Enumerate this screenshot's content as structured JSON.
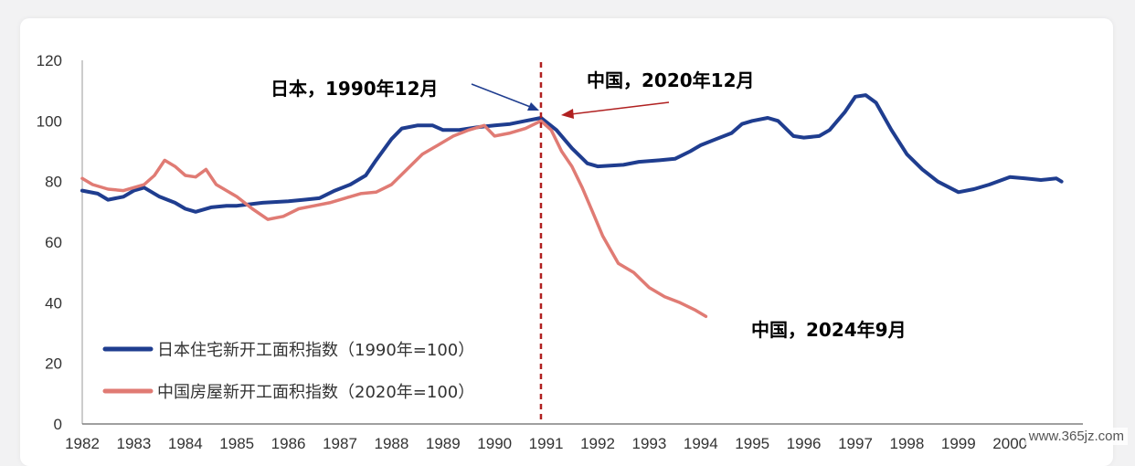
{
  "chart_data": {
    "type": "line",
    "title": "",
    "xlabel": "",
    "ylabel": "",
    "ylim": [
      0,
      120
    ],
    "yticks": [
      "0",
      "20",
      "40",
      "60",
      "80",
      "100",
      "120"
    ],
    "xlim": [
      1982,
      2001
    ],
    "xticks": [
      "1982",
      "1983",
      "1984",
      "1985",
      "1986",
      "1987",
      "1988",
      "1989",
      "1990",
      "1991",
      "1992",
      "1993",
      "1994",
      "1995",
      "1996",
      "1997",
      "1998",
      "1999",
      "2000"
    ],
    "grid": false,
    "legend_position": "bottom-left",
    "series": [
      {
        "name": "日本住宅新开工面积指数（1990年=100）",
        "color": "#1f3d8f",
        "points": [
          [
            1982.0,
            77
          ],
          [
            1982.3,
            76
          ],
          [
            1982.5,
            74
          ],
          [
            1982.8,
            75
          ],
          [
            1983.0,
            77
          ],
          [
            1983.2,
            78
          ],
          [
            1983.5,
            75
          ],
          [
            1983.8,
            73
          ],
          [
            1984.0,
            71
          ],
          [
            1984.2,
            70
          ],
          [
            1984.5,
            71.5
          ],
          [
            1984.8,
            72
          ],
          [
            1985.0,
            72
          ],
          [
            1985.5,
            73
          ],
          [
            1986.0,
            73.5
          ],
          [
            1986.3,
            74
          ],
          [
            1986.6,
            74.5
          ],
          [
            1986.9,
            77
          ],
          [
            1987.2,
            79
          ],
          [
            1987.5,
            82
          ],
          [
            1987.7,
            87
          ],
          [
            1988.0,
            94
          ],
          [
            1988.2,
            97.5
          ],
          [
            1988.5,
            98.5
          ],
          [
            1988.8,
            98.5
          ],
          [
            1989.0,
            97
          ],
          [
            1989.3,
            97
          ],
          [
            1989.7,
            98
          ],
          [
            1990.0,
            98.5
          ],
          [
            1990.3,
            99
          ],
          [
            1990.6,
            100
          ],
          [
            1990.9,
            101
          ],
          [
            1991.2,
            97
          ],
          [
            1991.5,
            91
          ],
          [
            1991.8,
            86
          ],
          [
            1992.0,
            85
          ],
          [
            1992.5,
            85.5
          ],
          [
            1992.8,
            86.5
          ],
          [
            1993.2,
            87
          ],
          [
            1993.5,
            87.5
          ],
          [
            1993.8,
            90
          ],
          [
            1994.0,
            92
          ],
          [
            1994.3,
            94
          ],
          [
            1994.6,
            96
          ],
          [
            1994.8,
            99
          ],
          [
            1995.0,
            100
          ],
          [
            1995.3,
            101
          ],
          [
            1995.5,
            100
          ],
          [
            1995.8,
            95
          ],
          [
            1996.0,
            94.5
          ],
          [
            1996.3,
            95
          ],
          [
            1996.5,
            97
          ],
          [
            1996.8,
            103
          ],
          [
            1997.0,
            108
          ],
          [
            1997.2,
            108.5
          ],
          [
            1997.4,
            106
          ],
          [
            1997.7,
            97
          ],
          [
            1998.0,
            89
          ],
          [
            1998.3,
            84
          ],
          [
            1998.6,
            80
          ],
          [
            1999.0,
            76.5
          ],
          [
            1999.3,
            77.5
          ],
          [
            1999.6,
            79
          ],
          [
            2000.0,
            81.5
          ],
          [
            2000.3,
            81
          ],
          [
            2000.6,
            80.5
          ],
          [
            2000.9,
            81
          ],
          [
            2001.0,
            80
          ]
        ]
      },
      {
        "name": "中国房屋新开工面积指数（2020年=100）",
        "color": "#e07b74",
        "points": [
          [
            1982.0,
            81
          ],
          [
            1982.2,
            79
          ],
          [
            1982.5,
            77.5
          ],
          [
            1982.8,
            77
          ],
          [
            1983.0,
            78
          ],
          [
            1983.2,
            79
          ],
          [
            1983.4,
            82
          ],
          [
            1983.6,
            87
          ],
          [
            1983.8,
            85
          ],
          [
            1984.0,
            82
          ],
          [
            1984.2,
            81.5
          ],
          [
            1984.4,
            84
          ],
          [
            1984.6,
            79
          ],
          [
            1984.8,
            77
          ],
          [
            1985.0,
            75
          ],
          [
            1985.3,
            71
          ],
          [
            1985.6,
            67.5
          ],
          [
            1985.9,
            68.5
          ],
          [
            1986.2,
            71
          ],
          [
            1986.5,
            72
          ],
          [
            1986.8,
            73
          ],
          [
            1987.1,
            74.5
          ],
          [
            1987.4,
            76
          ],
          [
            1987.7,
            76.5
          ],
          [
            1988.0,
            79
          ],
          [
            1988.3,
            84
          ],
          [
            1988.6,
            89
          ],
          [
            1988.9,
            92
          ],
          [
            1989.2,
            95
          ],
          [
            1989.5,
            97
          ],
          [
            1989.8,
            98.5
          ],
          [
            1990.0,
            95
          ],
          [
            1990.3,
            96
          ],
          [
            1990.6,
            97.5
          ],
          [
            1990.9,
            100
          ],
          [
            1991.1,
            97
          ],
          [
            1991.3,
            90
          ],
          [
            1991.5,
            85
          ],
          [
            1991.7,
            78
          ],
          [
            1991.9,
            70
          ],
          [
            1992.1,
            62
          ],
          [
            1992.4,
            53
          ],
          [
            1992.7,
            50
          ],
          [
            1993.0,
            45
          ],
          [
            1993.3,
            42
          ],
          [
            1993.6,
            40
          ],
          [
            1993.9,
            37.5
          ],
          [
            1994.1,
            35.5
          ]
        ]
      }
    ],
    "reference_line": {
      "x": 1990.9,
      "color": "#b02020",
      "style": "dashed"
    },
    "annotations": [
      {
        "text": "日本，1990年12月",
        "color": "#1f3d8f"
      },
      {
        "text": "中国，2020年12月",
        "color": "#b02020"
      },
      {
        "text": "中国，2024年9月",
        "color": "#b02020"
      }
    ]
  },
  "watermark": "www.365jz.com"
}
